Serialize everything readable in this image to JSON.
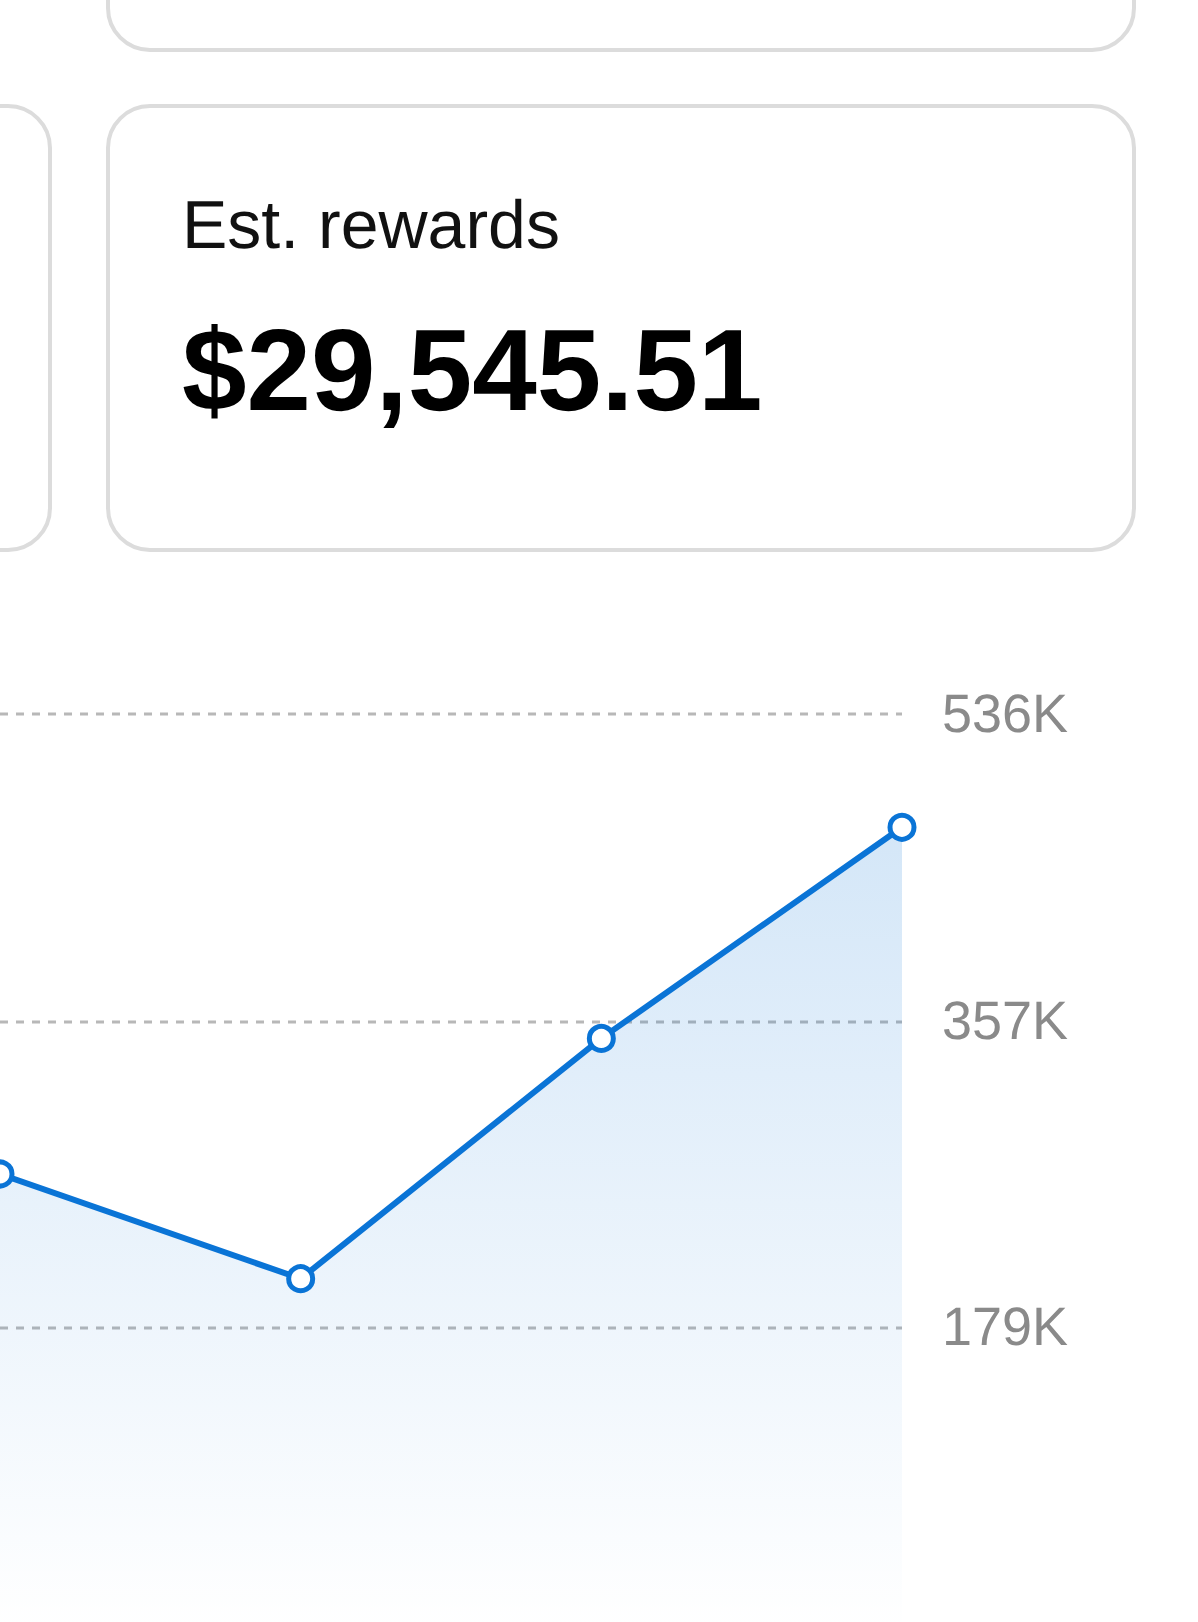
{
  "chart_data": [
    {
      "type": "other",
      "title": "Est. rewards",
      "annotations": [
        "$29,545.51"
      ]
    },
    {
      "type": "area",
      "categories": [
        null,
        null,
        null,
        null
      ],
      "series": [
        {
          "color": "#0a74d6",
          "values": [
            268,
            207,
            347,
            470
          ]
        }
      ],
      "ylim": [
        0,
        536
      ],
      "yticks": [
        {
          "value": 179,
          "label": "179K"
        },
        {
          "value": 357,
          "label": "357K"
        },
        {
          "value": 536,
          "label": "536K"
        }
      ],
      "grid": "y",
      "marker": "circle",
      "tick_labels": "y"
    }
  ]
}
